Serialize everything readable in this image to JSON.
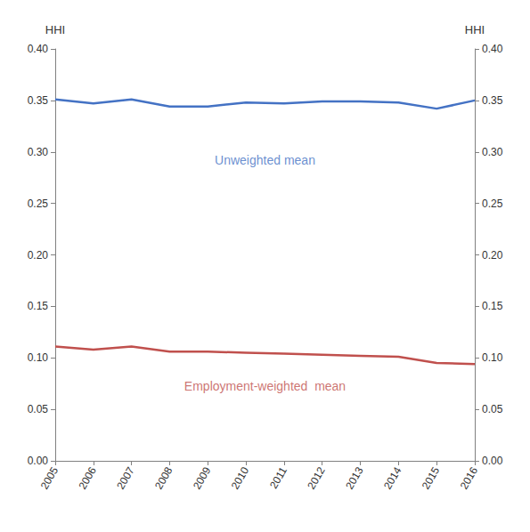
{
  "chart_data": {
    "type": "line",
    "x": [
      2005,
      2006,
      2007,
      2008,
      2009,
      2010,
      2011,
      2012,
      2013,
      2014,
      2015,
      2016
    ],
    "xlim": [
      2005,
      2016
    ],
    "xticks": [
      2005,
      2006,
      2007,
      2008,
      2009,
      2010,
      2011,
      2012,
      2013,
      2014,
      2015,
      2016
    ],
    "series": [
      {
        "color": "#4472C4",
        "values": [
          0.351,
          0.347,
          0.351,
          0.344,
          0.344,
          0.348,
          0.347,
          0.349,
          0.349,
          0.348,
          0.342,
          0.35
        ]
      },
      {
        "color": "#C0504D",
        "values": [
          0.111,
          0.108,
          0.111,
          0.106,
          0.106,
          0.105,
          0.104,
          0.103,
          0.102,
          0.101,
          0.095,
          0.094
        ]
      }
    ],
    "y_label": "HHI",
    "y2_label": "HHI",
    "ylim": [
      0.0,
      0.4
    ],
    "yticks": [
      {
        "value": 0.0,
        "label": "0.00"
      },
      0.05,
      {
        "value": 0.1,
        "label": "0.10"
      },
      0.15,
      {
        "value": 0.2,
        "label": "0.20"
      },
      0.25,
      {
        "value": 0.3,
        "label": "0.30"
      },
      0.35,
      {
        "value": 0.4,
        "label": "0.40"
      }
    ],
    "y2lim": [
      0.0,
      0.4
    ],
    "y2ticks": [
      {
        "value": 0.0,
        "label": "0.00"
      },
      0.05,
      {
        "value": 0.1,
        "label": "0.10"
      },
      0.15,
      {
        "value": 0.2,
        "label": "0.20"
      },
      0.25,
      {
        "value": 0.3,
        "label": "0.30"
      },
      0.35,
      {
        "value": 0.4,
        "label": "0.40"
      }
    ],
    "annotations": [
      {
        "text": "Unweighted mean",
        "x": 2010.5,
        "y": 0.292,
        "color": "#4472C4"
      },
      {
        "text": "Employment-weighted  mean",
        "x": 2010.5,
        "y": 0.073,
        "color": "#C0504D"
      }
    ],
    "grid": false
  }
}
